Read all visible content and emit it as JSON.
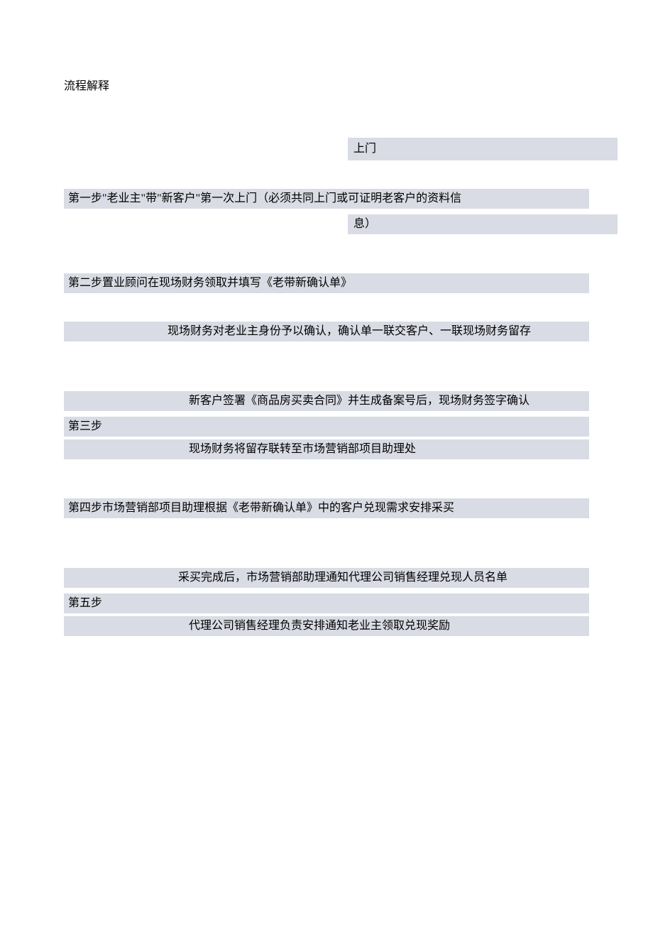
{
  "document": {
    "title": "流程解释",
    "background_color": "#ffffff",
    "highlight_color": "#d9dce4",
    "text_color": "#000000",
    "font_family": "SimSun",
    "font_size": 16,
    "header": {
      "label": "上门"
    },
    "steps": {
      "step1": {
        "line1": "第一步\"老业主\"带\"新客户\"第一次上门（必须共同上门或可证明老客户的资料信",
        "line2": "息）"
      },
      "step2": {
        "line1": "第二步置业顾问在现场财务领取并填写《老带新确认单》",
        "sub1": "现场财务对老业主身份予以确认，确认单一联交客户、一联现场财务留存"
      },
      "step3": {
        "sub1": "新客户签署《商品房买卖合同》并生成备案号后，现场财务签字确认",
        "label": "第三步",
        "sub2": "现场财务将留存联转至市场营销部项目助理处"
      },
      "step4": {
        "line1": "第四步市场营销部项目助理根据《老带新确认单》中的客户兑现需求安排采买"
      },
      "step5": {
        "sub1": "采买完成后，市场营销部助理通知代理公司销售经理兑现人员名单",
        "label": "第五步",
        "sub2": "代理公司销售经理负责安排通知老业主领取兑现奖励"
      }
    }
  }
}
